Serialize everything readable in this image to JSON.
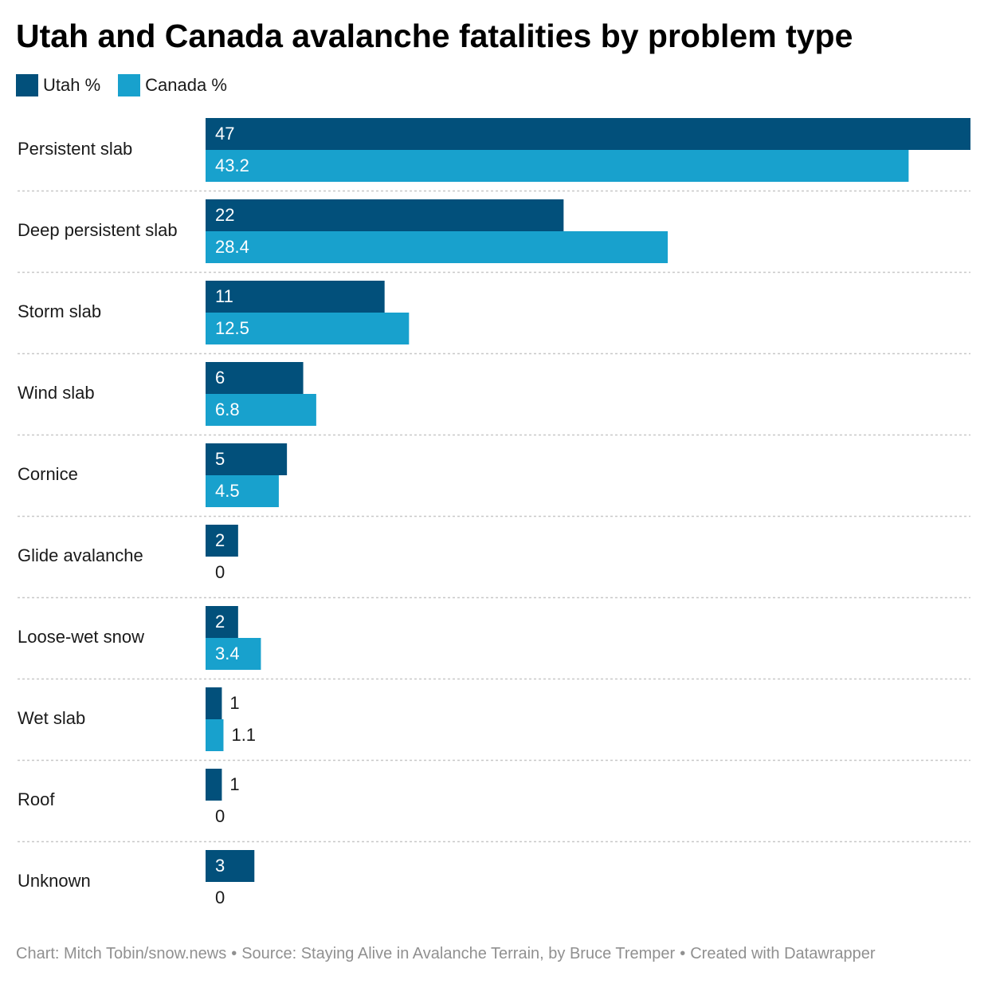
{
  "colors": {
    "utah": "#02507b",
    "canada": "#18a1cd",
    "grid": "#c8c8c8"
  },
  "legend": [
    {
      "label": "Utah %",
      "color": "#02507b"
    },
    {
      "label": "Canada %",
      "color": "#18a1cd"
    }
  ],
  "footer": {
    "chart": "Chart: Mitch Tobin/snow.news",
    "separator": "•",
    "source": "Source: Staying Alive in Avalanche Terrain, by Bruce Tremper",
    "created": "Created with Datawrapper"
  },
  "chart_data": {
    "type": "bar",
    "orientation": "horizontal",
    "title": "Utah and Canada avalanche fatalities by problem type",
    "categories": [
      "Persistent slab",
      "Deep persistent slab",
      "Storm slab",
      "Wind slab",
      "Cornice",
      "Glide avalanche",
      "Loose-wet snow",
      "Wet slab",
      "Roof",
      "Unknown"
    ],
    "series": [
      {
        "name": "Utah %",
        "values": [
          47,
          22,
          11,
          6,
          5,
          2,
          2,
          1,
          1,
          3
        ]
      },
      {
        "name": "Canada %",
        "values": [
          43.2,
          28.4,
          12.5,
          6.8,
          4.5,
          0,
          3.4,
          1.1,
          0,
          0
        ]
      }
    ],
    "xlim": [
      0,
      47
    ],
    "legend_position": "top-left",
    "grid": false,
    "data_labels": true
  }
}
